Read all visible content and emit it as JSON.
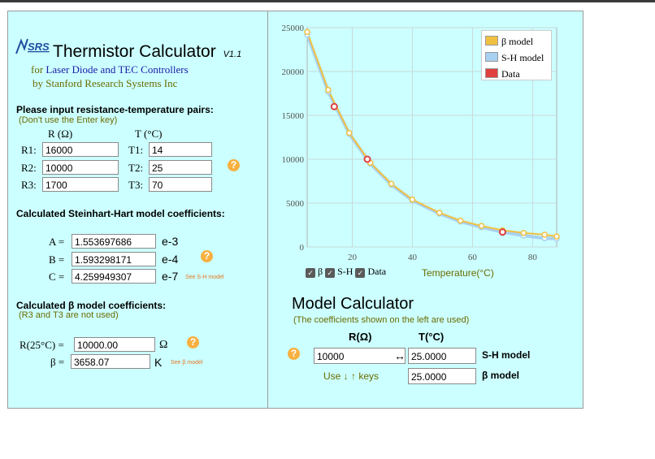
{
  "header": {
    "logo_text": "SRS",
    "title": "Thermistor Calculator",
    "version": "V1.1",
    "subtitle_for": "for",
    "subtitle_product": "Laser Diode and TEC Controllers",
    "subtitle_by": "by Stanford Research Systems Inc"
  },
  "pairs": {
    "heading": "Please input resistance-temperature pairs:",
    "hint": "(Don't use the Enter key)",
    "col_r": "R (Ω)",
    "col_t": "T (°C)",
    "rows": [
      {
        "r_label": "R1:",
        "r_value": "16000",
        "t_label": "T1:",
        "t_value": "14"
      },
      {
        "r_label": "R2:",
        "r_value": "10000",
        "t_label": "T2:",
        "t_value": "25"
      },
      {
        "r_label": "R3:",
        "r_value": "1700",
        "t_label": "T3:",
        "t_value": "70"
      }
    ]
  },
  "sh": {
    "heading": "Calculated Steinhart-Hart model coefficients:",
    "rows": [
      {
        "label": "A =",
        "value": "1.553697686",
        "exp": "e-3"
      },
      {
        "label": "B =",
        "value": "1.593298171",
        "exp": "e-4"
      },
      {
        "label": "C =",
        "value": "4.259949307",
        "exp": "e-7"
      }
    ],
    "link": "See S-H model"
  },
  "beta": {
    "heading": "Calculated β model coefficients:",
    "hint": "(R3 and T3 are not used)",
    "r25_label": "R(25°C) =",
    "r25_value": "10000.00",
    "r25_unit": "Ω",
    "beta_label": "β =",
    "beta_value": "3658.07",
    "beta_unit": "K",
    "link": "See β model"
  },
  "help_glyph": "?",
  "chart_toggles": {
    "beta": "β",
    "sh": "S-H",
    "data": "Data",
    "check": "✓"
  },
  "chart_data": {
    "type": "line",
    "xlabel": "Temperature(°C)",
    "ylabel": "",
    "xlim": [
      5,
      88
    ],
    "ylim": [
      0,
      25000
    ],
    "x_ticks": [
      20,
      40,
      60,
      80
    ],
    "y_ticks": [
      0,
      5000,
      10000,
      15000,
      20000,
      25000
    ],
    "grid": true,
    "legend_position": "top-right",
    "series": [
      {
        "name": "β model",
        "color": "#f0c040",
        "points": [
          [
            5,
            24500
          ],
          [
            12,
            17900
          ],
          [
            19,
            13000
          ],
          [
            26,
            9600
          ],
          [
            33,
            7200
          ],
          [
            40,
            5400
          ],
          [
            49,
            3900
          ],
          [
            56,
            3000
          ],
          [
            63,
            2400
          ],
          [
            70,
            1900
          ],
          [
            77,
            1600
          ],
          [
            84,
            1400
          ],
          [
            88,
            1200
          ]
        ]
      },
      {
        "name": "S-H model",
        "color": "#a8d0f0",
        "points": [
          [
            5,
            24200
          ],
          [
            12,
            17700
          ],
          [
            19,
            12900
          ],
          [
            26,
            9500
          ],
          [
            33,
            7100
          ],
          [
            40,
            5300
          ],
          [
            49,
            3800
          ],
          [
            56,
            2900
          ],
          [
            63,
            2250
          ],
          [
            70,
            1700
          ],
          [
            77,
            1300
          ],
          [
            84,
            1000
          ],
          [
            88,
            950
          ]
        ]
      },
      {
        "name": "Data",
        "color": "#e04040",
        "points": [
          [
            14,
            16000
          ],
          [
            25,
            10000
          ],
          [
            70,
            1700
          ]
        ]
      }
    ]
  },
  "model_calc": {
    "title": "Model Calculator",
    "hint": "(The coefficients shown on the left are used)",
    "col_r": "R(Ω)",
    "col_t": "T(°C)",
    "r_value": "10000",
    "arrow": "↔",
    "sh_t_value": "25.0000",
    "sh_label": "S-H model",
    "beta_t_value": "25.0000",
    "beta_label": "β model",
    "keys_hint": "Use ↓ ↑ keys"
  }
}
